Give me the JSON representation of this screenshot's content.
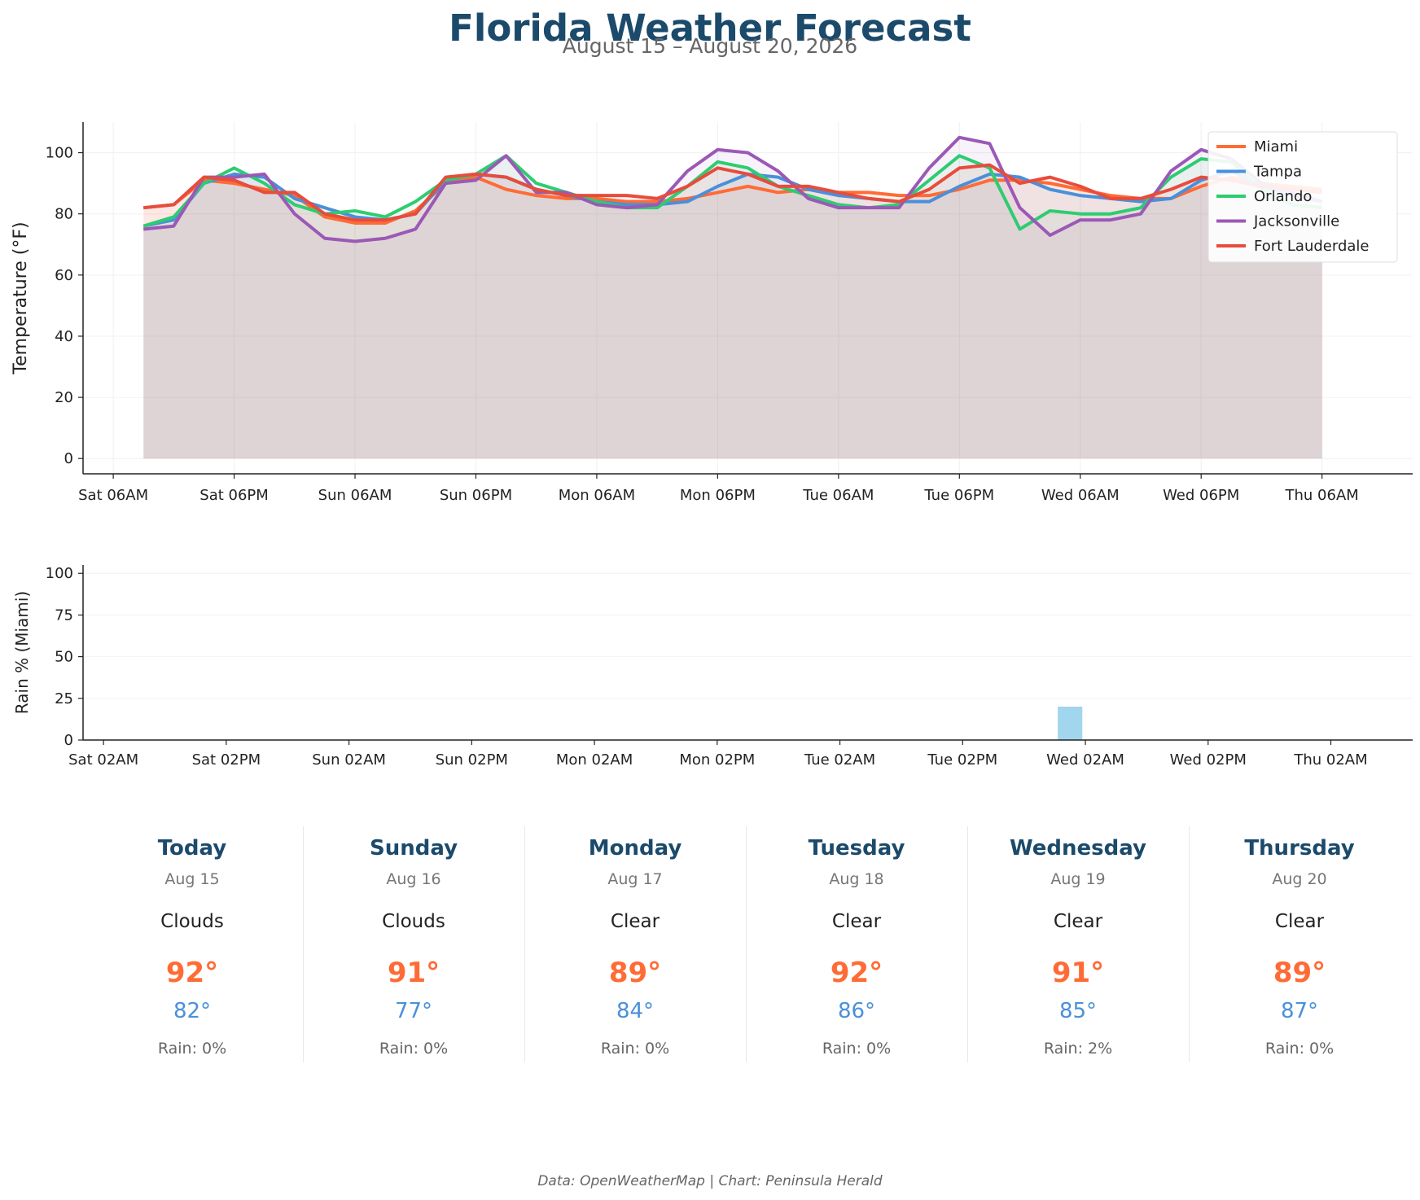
{
  "title": "Florida Weather Forecast",
  "subtitle": "August 15 – August 20, 2026",
  "footer": "Data: OpenWeatherMap | Chart: Peninsula Herald",
  "chart_data": [
    {
      "type": "line",
      "ylabel": "Temperature (°F)",
      "ylim": [
        -5,
        110
      ],
      "yticks": [
        0,
        20,
        40,
        60,
        80,
        100
      ],
      "xlim": [
        -3,
        129
      ],
      "xticks": [
        {
          "x": 0,
          "label": "Sat 06AM"
        },
        {
          "x": 12,
          "label": "Sat 06PM"
        },
        {
          "x": 24,
          "label": "Sun 06AM"
        },
        {
          "x": 36,
          "label": "Sun 06PM"
        },
        {
          "x": 48,
          "label": "Mon 06AM"
        },
        {
          "x": 60,
          "label": "Mon 06PM"
        },
        {
          "x": 72,
          "label": "Tue 06AM"
        },
        {
          "x": 84,
          "label": "Tue 06PM"
        },
        {
          "x": 96,
          "label": "Wed 06AM"
        },
        {
          "x": 108,
          "label": "Wed 06PM"
        },
        {
          "x": 120,
          "label": "Thu 06AM"
        }
      ],
      "x": [
        3,
        6,
        9,
        12,
        15,
        18,
        21,
        24,
        27,
        30,
        33,
        36,
        39,
        42,
        45,
        48,
        51,
        54,
        57,
        60,
        63,
        66,
        69,
        72,
        75,
        78,
        81,
        84,
        87,
        90,
        93,
        96,
        99,
        102,
        105,
        108,
        111,
        114,
        117,
        120
      ],
      "grid": true,
      "legend": "top-right",
      "series": [
        {
          "name": "Miami",
          "color": "#ff6b35",
          "fill": true,
          "values": [
            82,
            83,
            91,
            90,
            88,
            86,
            79,
            77,
            77,
            81,
            90,
            92,
            88,
            86,
            85,
            85,
            84,
            84,
            85,
            87,
            89,
            87,
            88,
            87,
            87,
            86,
            86,
            88,
            91,
            91,
            90,
            88,
            86,
            85,
            85,
            89,
            92,
            90,
            89,
            88
          ]
        },
        {
          "name": "Tampa",
          "color": "#4a90d9",
          "fill": true,
          "values": [
            76,
            78,
            90,
            93,
            92,
            85,
            82,
            79,
            78,
            80,
            91,
            93,
            92,
            88,
            86,
            84,
            83,
            83,
            84,
            89,
            93,
            92,
            88,
            86,
            85,
            84,
            84,
            89,
            93,
            92,
            88,
            86,
            85,
            84,
            85,
            91,
            94,
            89,
            86,
            84
          ]
        },
        {
          "name": "Orlando",
          "color": "#2ecc71",
          "fill": true,
          "values": [
            76,
            79,
            90,
            95,
            90,
            83,
            80,
            81,
            79,
            84,
            91,
            93,
            99,
            90,
            87,
            84,
            82,
            82,
            89,
            97,
            95,
            89,
            86,
            83,
            82,
            83,
            91,
            99,
            95,
            75,
            81,
            80,
            80,
            82,
            92,
            98,
            97,
            88,
            83,
            82
          ]
        },
        {
          "name": "Jacksonville",
          "color": "#9b59b6",
          "fill": true,
          "values": [
            75,
            76,
            92,
            92,
            93,
            80,
            72,
            71,
            72,
            75,
            90,
            91,
            99,
            87,
            87,
            83,
            82,
            83,
            94,
            101,
            100,
            94,
            85,
            82,
            82,
            82,
            95,
            105,
            103,
            82,
            73,
            78,
            78,
            80,
            94,
            101,
            98,
            90,
            87,
            84
          ]
        },
        {
          "name": "Fort Lauderdale",
          "color": "#e74c3c",
          "fill": true,
          "values": [
            82,
            83,
            92,
            91,
            87,
            87,
            80,
            78,
            78,
            80,
            92,
            93,
            92,
            88,
            86,
            86,
            86,
            85,
            89,
            95,
            93,
            89,
            89,
            87,
            85,
            84,
            88,
            95,
            96,
            90,
            92,
            89,
            85,
            85,
            88,
            92,
            91,
            89,
            88,
            87
          ]
        }
      ]
    },
    {
      "type": "bar",
      "ylabel": "Rain % (Miami)",
      "ylim": [
        0,
        105
      ],
      "yticks": [
        0,
        25,
        50,
        75,
        100
      ],
      "xlim": [
        -2,
        128
      ],
      "xticks": [
        {
          "x": 0,
          "label": "Sat 02AM"
        },
        {
          "x": 12,
          "label": "Sat 02PM"
        },
        {
          "x": 24,
          "label": "Sun 02AM"
        },
        {
          "x": 36,
          "label": "Sun 02PM"
        },
        {
          "x": 48,
          "label": "Mon 02AM"
        },
        {
          "x": 60,
          "label": "Mon 02PM"
        },
        {
          "x": 72,
          "label": "Tue 02AM"
        },
        {
          "x": 84,
          "label": "Tue 02PM"
        },
        {
          "x": 96,
          "label": "Wed 02AM"
        },
        {
          "x": 108,
          "label": "Wed 02PM"
        },
        {
          "x": 120,
          "label": "Thu 02AM"
        }
      ],
      "color": "#a2d5ee",
      "grid": true,
      "bar_width": 2.4,
      "bars": [
        {
          "x": 94.5,
          "value": 20
        }
      ]
    }
  ],
  "forecast": [
    {
      "day": "Today",
      "date": "Aug 15",
      "condition": "Clouds",
      "high": "92°",
      "low": "82°",
      "rain": "Rain: 0%"
    },
    {
      "day": "Sunday",
      "date": "Aug 16",
      "condition": "Clouds",
      "high": "91°",
      "low": "77°",
      "rain": "Rain: 0%"
    },
    {
      "day": "Monday",
      "date": "Aug 17",
      "condition": "Clear",
      "high": "89°",
      "low": "84°",
      "rain": "Rain: 0%"
    },
    {
      "day": "Tuesday",
      "date": "Aug 18",
      "condition": "Clear",
      "high": "92°",
      "low": "86°",
      "rain": "Rain: 0%"
    },
    {
      "day": "Wednesday",
      "date": "Aug 19",
      "condition": "Clear",
      "high": "91°",
      "low": "85°",
      "rain": "Rain: 2%"
    },
    {
      "day": "Thursday",
      "date": "Aug 20",
      "condition": "Clear",
      "high": "89°",
      "low": "87°",
      "rain": "Rain: 0%"
    }
  ]
}
